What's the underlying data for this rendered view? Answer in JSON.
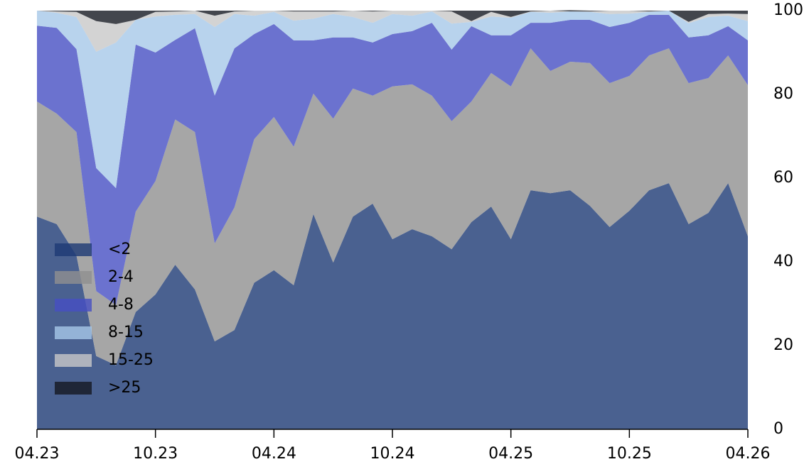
{
  "chart_data": {
    "type": "stacked_area",
    "categories": [
      "04.23",
      null,
      null,
      null,
      null,
      null,
      "10.23",
      null,
      null,
      null,
      null,
      null,
      "04.24",
      null,
      null,
      null,
      null,
      null,
      "10.24",
      null,
      null,
      null,
      null,
      null,
      "04.25",
      null,
      null,
      null,
      null,
      null,
      "10.25",
      null,
      null,
      null,
      null,
      null,
      "04.26"
    ],
    "series": [
      {
        "name": "<2",
        "color": "#1d3a74",
        "values": [
          50.8,
          49,
          41.5,
          17.5,
          15.3,
          28,
          32.2,
          39.3,
          33.4,
          21,
          23.7,
          35,
          38,
          34.4,
          51.4,
          39.8,
          50.8,
          53.9,
          45.4,
          47.8,
          46.1,
          43,
          49.5,
          53.2,
          45.4,
          57.1,
          56.4,
          57.1,
          53.4,
          48.3,
          52.2,
          57.1,
          58.8,
          49,
          51.7,
          58.8,
          46.1
        ]
      },
      {
        "name": "2-4",
        "color": "#909090",
        "values": [
          27.5,
          26.4,
          29.5,
          15.5,
          14.4,
          24,
          27.1,
          34.7,
          37.6,
          23.4,
          29.3,
          34.3,
          36.6,
          33.1,
          28.8,
          34.4,
          30.6,
          25.8,
          36.5,
          34.6,
          33.6,
          30.6,
          28.8,
          31.9,
          36.5,
          33.9,
          29.2,
          30.7,
          34.1,
          34.4,
          32.2,
          32.2,
          32.2,
          33.7,
          32.2,
          30.5,
          36.1
        ]
      },
      {
        "name": "4-8",
        "color": "#464fc3",
        "values": [
          18.1,
          20.5,
          19.8,
          29.4,
          27.9,
          39.9,
          30.7,
          19,
          24.8,
          35.3,
          38,
          25.1,
          22.2,
          25.4,
          12.7,
          19.4,
          12.2,
          12.7,
          12.5,
          12.7,
          17.4,
          17.1,
          18,
          9,
          12.2,
          6.1,
          11.5,
          10,
          10.3,
          13.4,
          12.7,
          9.7,
          8,
          10.9,
          10.2,
          7,
          10.7
        ]
      },
      {
        "name": "8-15",
        "color": "#a6c8e9",
        "values": [
          3.6,
          3.6,
          7.7,
          27.8,
          34.8,
          5.9,
          8.6,
          6,
          3.4,
          16.4,
          8.2,
          4.4,
          2.9,
          4.7,
          5.2,
          5.6,
          4.9,
          4.7,
          4.8,
          3.7,
          2.7,
          6.2,
          1.0,
          4.5,
          4.2,
          2.6,
          2.4,
          2,
          1.9,
          3.1,
          2.2,
          0.7,
          1,
          3.4,
          4.4,
          2.5,
          4.6
        ]
      },
      {
        "name": "15-25",
        "color": "#c8c8c8",
        "values": [
          0,
          0.3,
          1.2,
          7.3,
          4.4,
          0,
          1.1,
          0.8,
          0.8,
          2.7,
          0.6,
          1.2,
          0.3,
          2.2,
          1.7,
          0.6,
          1.5,
          2.7,
          0.8,
          1.2,
          0.2,
          2.9,
          0.2,
          1.1,
          0.2,
          0.1,
          0.5,
          0,
          0.1,
          0.8,
          0.7,
          0.1,
          0,
          0.3,
          0.7,
          0.5,
          1.7
        ]
      },
      {
        "name": ">25",
        "color": "#141820",
        "values": [
          0,
          0.2,
          0.3,
          2.5,
          3.2,
          2.2,
          0.3,
          0.2,
          0,
          1.2,
          0.2,
          0,
          0,
          0.2,
          0.2,
          0.2,
          0,
          0.2,
          0,
          0,
          0,
          0.2,
          2.5,
          0.3,
          1.5,
          0.2,
          0,
          0.3,
          0.2,
          0,
          0,
          0.2,
          0,
          2.7,
          0.8,
          0.7,
          0.8
        ]
      }
    ],
    "ylim": [
      0,
      100
    ],
    "yticks": [
      0,
      20,
      40,
      60,
      80,
      100
    ],
    "yaxis_side": "right",
    "legend": "lower left",
    "fill_opacity": 0.8
  }
}
